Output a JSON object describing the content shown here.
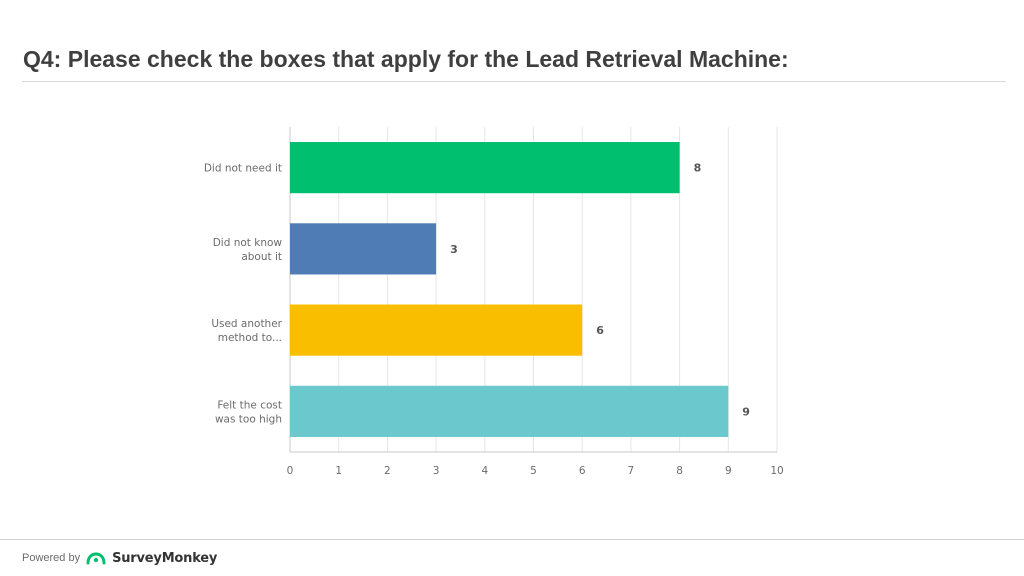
{
  "header": {
    "title": "Q4: Please check the boxes that apply for the Lead Retrieval Machine:"
  },
  "chart_data": {
    "type": "bar",
    "orientation": "horizontal",
    "categories": [
      [
        "Did not need it"
      ],
      [
        "Did not know",
        "about it"
      ],
      [
        "Used another",
        "method to..."
      ],
      [
        "Felt the cost",
        "was too high"
      ]
    ],
    "values": [
      8,
      3,
      6,
      9
    ],
    "colors": [
      "#00bf6f",
      "#507cb6",
      "#f9be00",
      "#6bc8cd"
    ],
    "xlim": [
      0,
      10
    ],
    "xticks": [
      0,
      1,
      2,
      3,
      4,
      5,
      6,
      7,
      8,
      9,
      10
    ],
    "grid": true,
    "title": "",
    "xlabel": "",
    "ylabel": ""
  },
  "footer": {
    "powered_by": "Powered by",
    "brand": "SurveyMonkey",
    "logo_icon": "surveymonkey-logo-icon"
  }
}
